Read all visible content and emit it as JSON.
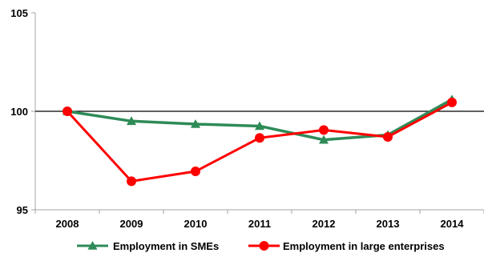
{
  "chart_data": {
    "type": "line",
    "title": "",
    "xlabel": "",
    "ylabel": "",
    "categories": [
      "2008",
      "2009",
      "2010",
      "2011",
      "2012",
      "2013",
      "2014"
    ],
    "ylim": [
      95,
      105
    ],
    "yticks": [
      "95",
      "100",
      "105"
    ],
    "reference_line": 100,
    "grid": false,
    "legend_position": "bottom",
    "series": [
      {
        "name": "Employment in SMEs",
        "color": "#2e8b57",
        "marker": "triangle",
        "values": [
          100.0,
          99.5,
          99.35,
          99.25,
          98.55,
          98.8,
          100.6
        ]
      },
      {
        "name": "Employment in large enterprises",
        "color": "#ff0000",
        "marker": "circle",
        "values": [
          100.0,
          96.45,
          96.95,
          98.65,
          99.05,
          98.7,
          100.45
        ]
      }
    ]
  }
}
